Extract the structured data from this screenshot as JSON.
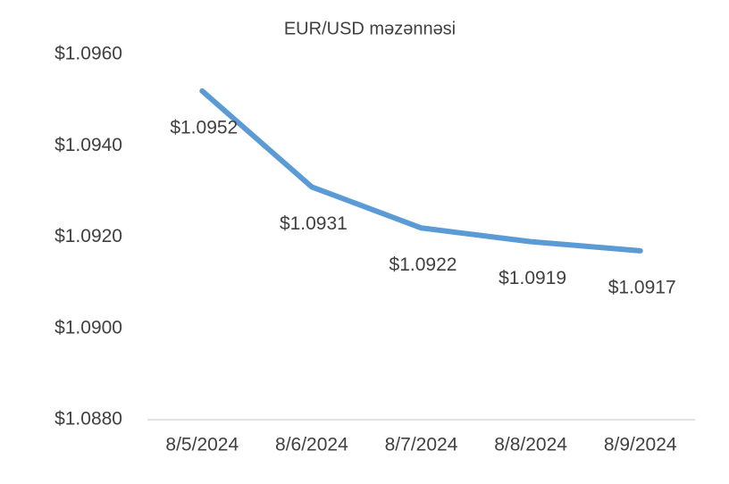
{
  "chart_data": {
    "type": "line",
    "title": "EUR/USD məzənnəsi",
    "categories": [
      "8/5/2024",
      "8/6/2024",
      "8/7/2024",
      "8/8/2024",
      "8/9/2024"
    ],
    "values": [
      1.0952,
      1.0931,
      1.0922,
      1.0919,
      1.0917
    ],
    "value_labels": [
      "$1.0952",
      "$1.0931",
      "$1.0922",
      "$1.0919",
      "$1.0917"
    ],
    "color": "#5b9bd5",
    "ylim": [
      1.088,
      1.096
    ],
    "yticks": [
      {
        "value": 1.088,
        "label": "$1.0880"
      },
      {
        "value": 1.09,
        "label": "$1.0900"
      },
      {
        "value": 1.092,
        "label": "$1.0920"
      },
      {
        "value": 1.094,
        "label": "$1.0940"
      },
      {
        "value": 1.096,
        "label": "$1.0960"
      }
    ],
    "grid": false
  }
}
